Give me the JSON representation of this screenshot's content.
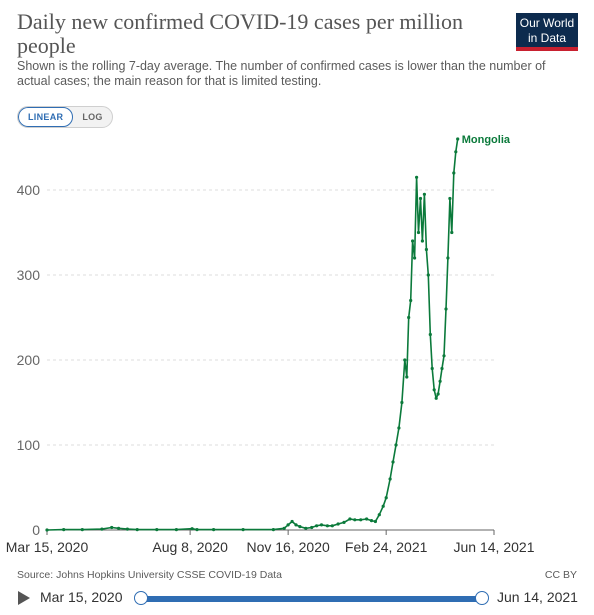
{
  "header": {
    "title": "Daily new confirmed COVID-19 cases per million people",
    "subtitle": "Shown is the rolling 7-day average. The number of confirmed cases is lower than the number of actual cases; the main reason for that is limited testing.",
    "logo_line1": "Our World",
    "logo_line2": "in Data"
  },
  "controls": {
    "linear_label": "LINEAR",
    "log_label": "LOG",
    "active_scale": "linear"
  },
  "chart_data": {
    "type": "line",
    "title": "Daily new confirmed COVID-19 cases per million people",
    "xlabel": "",
    "ylabel": "",
    "x_ticks": [
      "Mar 15, 2020",
      "Aug 8, 2020",
      "Nov 16, 2020",
      "Feb 24, 2021",
      "Jun 14, 2021"
    ],
    "y_ticks": [
      0,
      100,
      200,
      300,
      400
    ],
    "ylim": [
      0,
      460
    ],
    "xlim": [
      "2020-03-15",
      "2021-06-14"
    ],
    "grid": "horizontal dashed",
    "colors": {
      "series": "#0b7a3b",
      "grid": "#dddddd",
      "axis": "#666666"
    },
    "series": [
      {
        "name": "Mongolia",
        "points": [
          [
            "2020-03-15",
            0
          ],
          [
            "2020-04-01",
            0.5
          ],
          [
            "2020-04-20",
            0.5
          ],
          [
            "2020-05-10",
            1
          ],
          [
            "2020-05-20",
            3
          ],
          [
            "2020-05-27",
            2
          ],
          [
            "2020-06-05",
            1
          ],
          [
            "2020-06-15",
            0.5
          ],
          [
            "2020-07-05",
            0.5
          ],
          [
            "2020-07-25",
            0.5
          ],
          [
            "2020-08-10",
            1.5
          ],
          [
            "2020-08-15",
            0.5
          ],
          [
            "2020-09-01",
            0.5
          ],
          [
            "2020-10-01",
            0.5
          ],
          [
            "2020-11-01",
            0.5
          ],
          [
            "2020-11-12",
            2
          ],
          [
            "2020-11-16",
            6
          ],
          [
            "2020-11-20",
            10
          ],
          [
            "2020-11-24",
            6
          ],
          [
            "2020-11-28",
            4
          ],
          [
            "2020-12-04",
            2
          ],
          [
            "2020-12-10",
            3
          ],
          [
            "2020-12-15",
            5
          ],
          [
            "2020-12-20",
            6
          ],
          [
            "2020-12-26",
            5
          ],
          [
            "2020-12-31",
            5
          ],
          [
            "2021-01-06",
            7
          ],
          [
            "2021-01-12",
            9
          ],
          [
            "2021-01-18",
            13
          ],
          [
            "2021-01-23",
            12
          ],
          [
            "2021-01-29",
            12
          ],
          [
            "2021-02-04",
            13
          ],
          [
            "2021-02-09",
            11
          ],
          [
            "2021-02-13",
            10
          ],
          [
            "2021-02-17",
            18
          ],
          [
            "2021-02-21",
            28
          ],
          [
            "2021-02-24",
            38
          ],
          [
            "2021-02-28",
            60
          ],
          [
            "2021-03-03",
            80
          ],
          [
            "2021-03-06",
            100
          ],
          [
            "2021-03-09",
            120
          ],
          [
            "2021-03-12",
            150
          ],
          [
            "2021-03-15",
            200
          ],
          [
            "2021-03-17",
            180
          ],
          [
            "2021-03-19",
            250
          ],
          [
            "2021-03-21",
            270
          ],
          [
            "2021-03-23",
            340
          ],
          [
            "2021-03-25",
            320
          ],
          [
            "2021-03-27",
            415
          ],
          [
            "2021-03-29",
            350
          ],
          [
            "2021-03-31",
            390
          ],
          [
            "2021-04-02",
            340
          ],
          [
            "2021-04-04",
            395
          ],
          [
            "2021-04-06",
            330
          ],
          [
            "2021-04-08",
            300
          ],
          [
            "2021-04-10",
            230
          ],
          [
            "2021-04-12",
            190
          ],
          [
            "2021-04-14",
            165
          ],
          [
            "2021-04-16",
            155
          ],
          [
            "2021-04-18",
            160
          ],
          [
            "2021-04-20",
            175
          ],
          [
            "2021-04-22",
            190
          ],
          [
            "2021-04-24",
            205
          ],
          [
            "2021-04-26",
            260
          ],
          [
            "2021-04-28",
            320
          ],
          [
            "2021-04-30",
            390
          ],
          [
            "2021-05-02",
            350
          ],
          [
            "2021-05-04",
            420
          ],
          [
            "2021-05-06",
            445
          ],
          [
            "2021-05-08",
            460
          ]
        ]
      }
    ]
  },
  "footer": {
    "source": "Source: Johns Hopkins University CSSE COVID-19 Data",
    "license": "CC BY"
  },
  "timeline": {
    "start_label": "Mar 15, 2020",
    "end_label": "Jun 14, 2021"
  }
}
